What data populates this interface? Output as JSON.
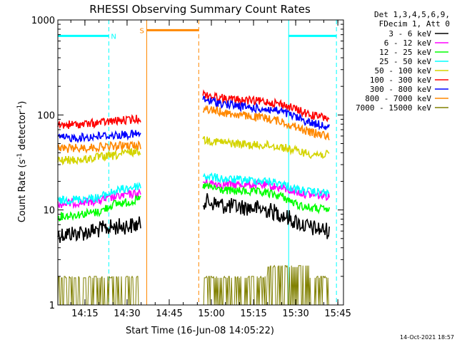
{
  "chart_data": {
    "type": "line",
    "title": "RHESSI Observing Summary Count Rates",
    "xlabel": "Start Time (16-Jun-08 14:05:22)",
    "ylabel_main": "Count Rate (s",
    "ylabel_sup1": "-1",
    "ylabel_mid": " detector",
    "ylabel_sup2": "-1",
    "ylabel_end": ")",
    "yscale": "log",
    "ylim": [
      1,
      1000
    ],
    "xlim": [
      "14:05:22",
      "15:47:00"
    ],
    "x_ticks": [
      "14:15",
      "14:30",
      "14:45",
      "15:00",
      "15:15",
      "15:30",
      "15:45"
    ],
    "y_ticks": [
      "1",
      "10",
      "100",
      "1000"
    ],
    "legend_header": [
      "Det 1,3,4,5,6,9,",
      "FDecim 1, Att 0"
    ],
    "legend_position": "right",
    "series": [
      {
        "name": "3 - 6 keV",
        "color": "#000000",
        "segments": [
          [
            [
              "14:05:22",
              5.5
            ],
            [
              "14:15",
              5.8
            ],
            [
              "14:20",
              6.2
            ],
            [
              "14:25",
              6.6
            ],
            [
              "14:30",
              6.8
            ],
            [
              "14:35",
              7.0
            ]
          ],
          [
            [
              "14:57",
              12.5
            ],
            [
              "15:05",
              11.0
            ],
            [
              "15:15",
              10.5
            ],
            [
              "15:20",
              10.0
            ],
            [
              "15:25",
              9.0
            ],
            [
              "15:30",
              7.5
            ],
            [
              "15:35",
              6.5
            ],
            [
              "15:42",
              6.0
            ]
          ]
        ]
      },
      {
        "name": "6 - 12 keV",
        "color": "#ff00ff",
        "segments": [
          [
            [
              "14:05:22",
              11.5
            ],
            [
              "14:20",
              12.5
            ],
            [
              "14:25",
              13.5
            ],
            [
              "14:30",
              14.5
            ],
            [
              "14:35",
              15.0
            ]
          ],
          [
            [
              "14:57",
              19.5
            ],
            [
              "15:05",
              18.5
            ],
            [
              "15:15",
              18.5
            ],
            [
              "15:20",
              18.0
            ],
            [
              "15:25",
              17.0
            ],
            [
              "15:30",
              15.5
            ],
            [
              "15:35",
              14.5
            ],
            [
              "15:42",
              14.0
            ]
          ]
        ]
      },
      {
        "name": "12 - 25 keV",
        "color": "#00ff00",
        "segments": [
          [
            [
              "14:05:22",
              8.5
            ],
            [
              "14:20",
              9.5
            ],
            [
              "14:25",
              11.5
            ],
            [
              "14:30",
              12.0
            ],
            [
              "14:35",
              13.0
            ]
          ],
          [
            [
              "14:57",
              18.0
            ],
            [
              "15:05",
              16.0
            ],
            [
              "15:15",
              15.5
            ],
            [
              "15:20",
              15.0
            ],
            [
              "15:25",
              14.0
            ],
            [
              "15:30",
              11.5
            ],
            [
              "15:35",
              10.5
            ],
            [
              "15:42",
              10.0
            ]
          ]
        ]
      },
      {
        "name": "25 - 50 keV",
        "color": "#00ffff",
        "segments": [
          [
            [
              "14:05:22",
              12.5
            ],
            [
              "14:20",
              13.5
            ],
            [
              "14:25",
              15.5
            ],
            [
              "14:30",
              17.0
            ],
            [
              "14:35",
              18.0
            ]
          ],
          [
            [
              "14:57",
              23.0
            ],
            [
              "15:05",
              21.0
            ],
            [
              "15:15",
              20.5
            ],
            [
              "15:20",
              20.0
            ],
            [
              "15:25",
              19.0
            ],
            [
              "15:30",
              16.5
            ],
            [
              "15:35",
              15.5
            ],
            [
              "15:42",
              15.0
            ]
          ]
        ]
      },
      {
        "name": "50 - 100 keV",
        "color": "#d4d400",
        "segments": [
          [
            [
              "14:05:22",
              33.0
            ],
            [
              "14:15",
              34.0
            ],
            [
              "14:20",
              36.0
            ],
            [
              "14:25",
              37.0
            ],
            [
              "14:30",
              40.0
            ],
            [
              "14:35",
              42.0
            ]
          ],
          [
            [
              "14:57",
              55.0
            ],
            [
              "15:05",
              51.0
            ],
            [
              "15:15",
              48.0
            ],
            [
              "15:20",
              48.0
            ],
            [
              "15:25",
              46.0
            ],
            [
              "15:30",
              42.0
            ],
            [
              "15:35",
              39.0
            ],
            [
              "15:42",
              38.0
            ]
          ]
        ]
      },
      {
        "name": "100 - 300 keV",
        "color": "#ff0000",
        "segments": [
          [
            [
              "14:05:22",
              78.0
            ],
            [
              "14:15",
              80.0
            ],
            [
              "14:20",
              83.0
            ],
            [
              "14:25",
              86.0
            ],
            [
              "14:30",
              88.0
            ],
            [
              "14:35",
              92.0
            ]
          ],
          [
            [
              "14:57",
              165.0
            ],
            [
              "15:05",
              148.0
            ],
            [
              "15:15",
              140.0
            ],
            [
              "15:20",
              138.0
            ],
            [
              "15:25",
              130.0
            ],
            [
              "15:30",
              115.0
            ],
            [
              "15:35",
              100.0
            ],
            [
              "15:42",
              92.0
            ]
          ]
        ]
      },
      {
        "name": "300 - 800 keV",
        "color": "#0000ff",
        "segments": [
          [
            [
              "14:05:22",
              57.0
            ],
            [
              "14:15",
              58.0
            ],
            [
              "14:20",
              60.0
            ],
            [
              "14:25",
              61.0
            ],
            [
              "14:30",
              62.0
            ],
            [
              "14:35",
              63.0
            ]
          ],
          [
            [
              "14:57",
              145.0
            ],
            [
              "15:05",
              130.0
            ],
            [
              "15:15",
              118.0
            ],
            [
              "15:20",
              115.0
            ],
            [
              "15:25",
              108.0
            ],
            [
              "15:30",
              95.0
            ],
            [
              "15:35",
              83.0
            ],
            [
              "15:42",
              76.0
            ]
          ]
        ]
      },
      {
        "name": "800 - 7000 keV",
        "color": "#ff8800",
        "segments": [
          [
            [
              "14:05:22",
              44.0
            ],
            [
              "14:15",
              45.0
            ],
            [
              "14:20",
              46.0
            ],
            [
              "14:25",
              47.0
            ],
            [
              "14:30",
              47.5
            ],
            [
              "14:35",
              48.0
            ]
          ],
          [
            [
              "14:57",
              118.0
            ],
            [
              "15:05",
              105.0
            ],
            [
              "15:15",
              95.0
            ],
            [
              "15:20",
              92.0
            ],
            [
              "15:25",
              85.0
            ],
            [
              "15:30",
              75.0
            ],
            [
              "15:35",
              66.0
            ],
            [
              "15:42",
              60.0
            ]
          ]
        ]
      },
      {
        "name": "7000 - 15000 keV",
        "color": "#808000",
        "segments": [
          [
            [
              "14:05:22",
              1.5
            ],
            [
              "14:15",
              1.5
            ],
            [
              "14:25",
              1.6
            ],
            [
              "14:35",
              1.7
            ]
          ],
          [
            [
              "14:57",
              1.6
            ],
            [
              "15:10",
              1.6
            ],
            [
              "15:20",
              2.2
            ],
            [
              "15:27",
              2.2
            ],
            [
              "15:35",
              1.6
            ],
            [
              "15:42",
              1.6
            ]
          ]
        ]
      }
    ],
    "annotations": [
      {
        "label": "N",
        "color": "#00ffff",
        "bar": [
          "14:05:22",
          "14:23:30"
        ],
        "bar_y": 680,
        "dashed_at": "14:23:30",
        "solid_at": "14:05:22"
      },
      {
        "label": "S",
        "color": "#ff8800",
        "bar": [
          "14:37:00",
          "14:55:30"
        ],
        "bar_y": 780,
        "dashed_at": "14:55:30",
        "solid_at": "14:37:00"
      },
      {
        "label": "",
        "color": "#00ffff",
        "bar": [
          "15:27:30",
          "15:44:30"
        ],
        "bar_y": 680,
        "dashed_at": "15:44:30",
        "solid_at": "15:27:30"
      }
    ],
    "grid": false
  },
  "footer": {
    "timestamp": "14-Oct-2021 18:57"
  }
}
